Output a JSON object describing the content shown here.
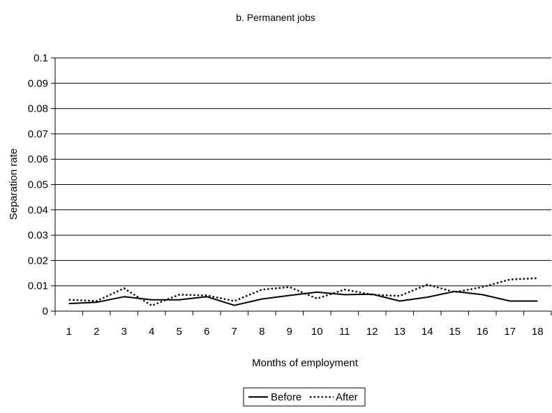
{
  "chart_data": {
    "type": "line",
    "title": "b. Permanent jobs",
    "xlabel": "Months of employment",
    "ylabel": "Separation rate",
    "ylim": [
      0,
      0.1
    ],
    "y_ticks": [
      "0",
      "0.01",
      "0.02",
      "0.03",
      "0.04",
      "0.05",
      "0.06",
      "0.07",
      "0.08",
      "0.09",
      "0.1"
    ],
    "categories": [
      "1",
      "2",
      "3",
      "4",
      "5",
      "6",
      "7",
      "8",
      "9",
      "10",
      "11",
      "12",
      "13",
      "14",
      "15",
      "16",
      "17",
      "18"
    ],
    "grid": "horizontal",
    "legend_position": "bottom",
    "series": [
      {
        "name": "Before",
        "style": "solid",
        "color": "#000000",
        "values": [
          0.003,
          0.0035,
          0.0057,
          0.0045,
          0.0045,
          0.0057,
          0.0023,
          0.0048,
          0.0062,
          0.0075,
          0.0065,
          0.0067,
          0.004,
          0.0055,
          0.0078,
          0.0065,
          0.004,
          0.004
        ]
      },
      {
        "name": "After",
        "style": "dotted",
        "color": "#000000",
        "values": [
          0.0045,
          0.004,
          0.009,
          0.0022,
          0.0065,
          0.0062,
          0.004,
          0.0085,
          0.0095,
          0.005,
          0.0085,
          0.0065,
          0.006,
          0.0105,
          0.0075,
          0.0095,
          0.0125,
          0.013
        ]
      }
    ]
  }
}
